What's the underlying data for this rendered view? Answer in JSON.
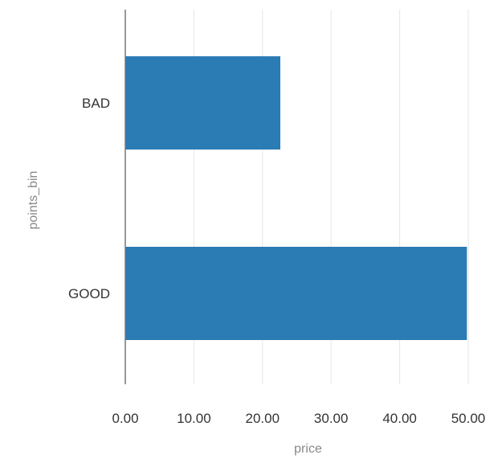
{
  "chart_data": {
    "type": "bar",
    "orientation": "horizontal",
    "categories": [
      "BAD",
      "GOOD"
    ],
    "series": [
      {
        "values": [
          22.6,
          49.8
        ]
      }
    ],
    "xlabel": "price",
    "ylabel": "points_bin",
    "xlim": [
      0,
      50
    ],
    "x_ticks": [
      "0.00",
      "10.00",
      "20.00",
      "30.00",
      "40.00",
      "50.00"
    ],
    "grid": "vertical",
    "bar_color": "#2b7bb5"
  }
}
